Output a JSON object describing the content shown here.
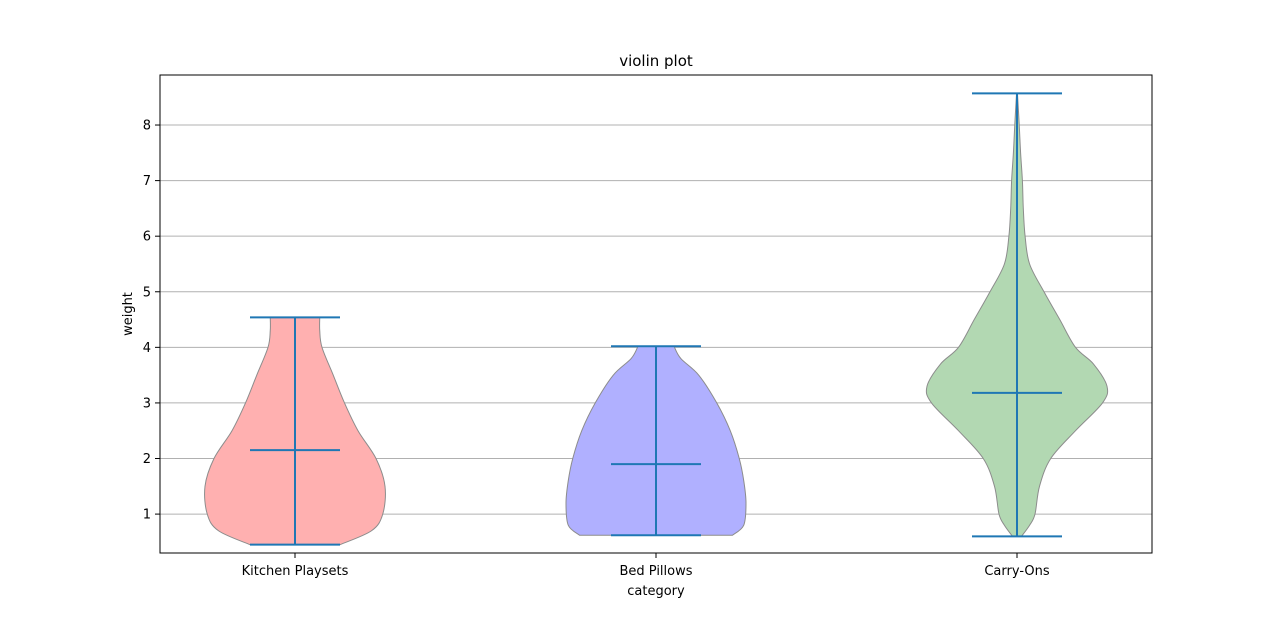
{
  "chart_data": {
    "type": "violin",
    "title": "violin plot",
    "xlabel": "category",
    "ylabel": "weight",
    "ylim": [
      0.3,
      8.9
    ],
    "yticks": [
      1,
      2,
      3,
      4,
      5,
      6,
      7,
      8
    ],
    "grid": "horizontal",
    "categories": [
      "Kitchen Playsets",
      "Bed Pillows",
      "Carry-Ons"
    ],
    "violins": [
      {
        "category": "Kitchen Playsets",
        "color": "#ffb0b0",
        "min": 0.45,
        "median": 2.15,
        "max": 4.54,
        "density_profile": [
          [
            0.45,
            1.0
          ],
          [
            0.7,
            1.7
          ],
          [
            1.0,
            1.95
          ],
          [
            1.5,
            2.0
          ],
          [
            2.0,
            1.8
          ],
          [
            2.5,
            1.4
          ],
          [
            3.0,
            1.1
          ],
          [
            3.5,
            0.85
          ],
          [
            4.0,
            0.6
          ],
          [
            4.3,
            0.55
          ],
          [
            4.54,
            0.55
          ]
        ]
      },
      {
        "category": "Bed Pillows",
        "color": "#b0b0ff",
        "min": 0.62,
        "median": 1.9,
        "max": 4.02,
        "density_profile": [
          [
            0.62,
            1.7
          ],
          [
            0.8,
            1.95
          ],
          [
            1.2,
            2.0
          ],
          [
            1.6,
            1.95
          ],
          [
            2.0,
            1.85
          ],
          [
            2.5,
            1.65
          ],
          [
            3.0,
            1.35
          ],
          [
            3.5,
            0.95
          ],
          [
            3.8,
            0.55
          ],
          [
            4.02,
            0.4
          ]
        ]
      },
      {
        "category": "Carry-Ons",
        "color": "#b2d8b2",
        "min": 0.6,
        "median": 3.18,
        "max": 8.57,
        "density_profile": [
          [
            0.6,
            0.1
          ],
          [
            0.8,
            0.28
          ],
          [
            1.0,
            0.4
          ],
          [
            1.5,
            0.5
          ],
          [
            2.0,
            0.75
          ],
          [
            2.5,
            1.3
          ],
          [
            3.0,
            1.9
          ],
          [
            3.3,
            2.0
          ],
          [
            3.7,
            1.7
          ],
          [
            4.0,
            1.3
          ],
          [
            4.5,
            0.95
          ],
          [
            5.0,
            0.6
          ],
          [
            5.5,
            0.28
          ],
          [
            6.0,
            0.18
          ],
          [
            6.5,
            0.14
          ],
          [
            7.0,
            0.12
          ],
          [
            7.5,
            0.08
          ],
          [
            8.0,
            0.05
          ],
          [
            8.57,
            0.01
          ]
        ]
      }
    ]
  }
}
